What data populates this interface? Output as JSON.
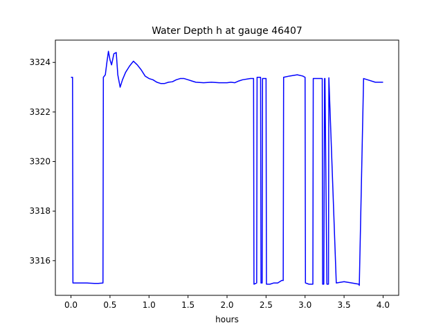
{
  "chart_data": {
    "type": "line",
    "title": "Water Depth h at gauge 46407",
    "xlabel": "hours",
    "ylabel": "",
    "xlim": [
      -0.2,
      4.2
    ],
    "ylim": [
      3314.6,
      3324.9
    ],
    "xticks": [
      0.0,
      0.5,
      1.0,
      1.5,
      2.0,
      2.5,
      3.0,
      3.5,
      4.0
    ],
    "xtick_labels": [
      "0.0",
      "0.5",
      "1.0",
      "1.5",
      "2.0",
      "2.5",
      "3.0",
      "3.5",
      "4.0"
    ],
    "yticks": [
      3316,
      3318,
      3320,
      3322,
      3324
    ],
    "ytick_labels": [
      "3316",
      "3318",
      "3320",
      "3322",
      "3324"
    ],
    "grid": false,
    "line_color": "#0000ff",
    "series": [
      {
        "x": [
          0.0,
          0.02,
          0.025,
          0.1,
          0.2,
          0.3,
          0.35,
          0.41,
          0.415,
          0.44,
          0.46,
          0.48,
          0.5,
          0.52,
          0.55,
          0.58,
          0.6,
          0.63,
          0.66,
          0.7,
          0.75,
          0.8,
          0.85,
          0.9,
          0.95,
          1.0,
          1.05,
          1.1,
          1.15,
          1.2,
          1.25,
          1.3,
          1.35,
          1.4,
          1.45,
          1.5,
          1.55,
          1.6,
          1.7,
          1.8,
          1.9,
          2.0,
          2.05,
          2.1,
          2.15,
          2.2,
          2.3,
          2.34,
          2.345,
          2.38,
          2.385,
          2.43,
          2.435,
          2.45,
          2.455,
          2.5,
          2.505,
          2.55,
          2.6,
          2.65,
          2.7,
          2.72,
          2.725,
          2.8,
          2.9,
          2.97,
          3.0,
          3.005,
          3.05,
          3.1,
          3.105,
          3.2,
          3.22,
          3.225,
          3.24,
          3.25,
          3.255,
          3.28,
          3.3,
          3.305,
          3.4,
          3.5,
          3.6,
          3.69,
          3.695,
          3.75,
          3.8,
          3.9,
          4.0
        ],
        "y": [
          3323.4,
          3323.4,
          3315.1,
          3315.1,
          3315.1,
          3315.08,
          3315.08,
          3315.1,
          3323.4,
          3323.5,
          3324.0,
          3324.45,
          3324.1,
          3323.9,
          3324.35,
          3324.4,
          3323.5,
          3323.0,
          3323.3,
          3323.6,
          3323.85,
          3324.05,
          3323.9,
          3323.7,
          3323.45,
          3323.35,
          3323.3,
          3323.2,
          3323.15,
          3323.15,
          3323.2,
          3323.22,
          3323.3,
          3323.35,
          3323.35,
          3323.3,
          3323.25,
          3323.2,
          3323.18,
          3323.2,
          3323.18,
          3323.18,
          3323.2,
          3323.18,
          3323.25,
          3323.3,
          3323.35,
          3323.35,
          3315.05,
          3315.1,
          3323.4,
          3323.4,
          3315.1,
          3315.1,
          3323.35,
          3323.35,
          3315.05,
          3315.05,
          3315.1,
          3315.1,
          3315.2,
          3315.2,
          3323.4,
          3323.45,
          3323.5,
          3323.45,
          3323.4,
          3315.1,
          3315.05,
          3315.05,
          3323.35,
          3323.35,
          3323.35,
          3315.05,
          3315.05,
          3323.35,
          3323.35,
          3315.05,
          3315.05,
          3323.38,
          3315.1,
          3315.15,
          3315.1,
          3315.05,
          3315.0,
          3323.35,
          3323.3,
          3323.2,
          3323.2
        ]
      }
    ]
  }
}
